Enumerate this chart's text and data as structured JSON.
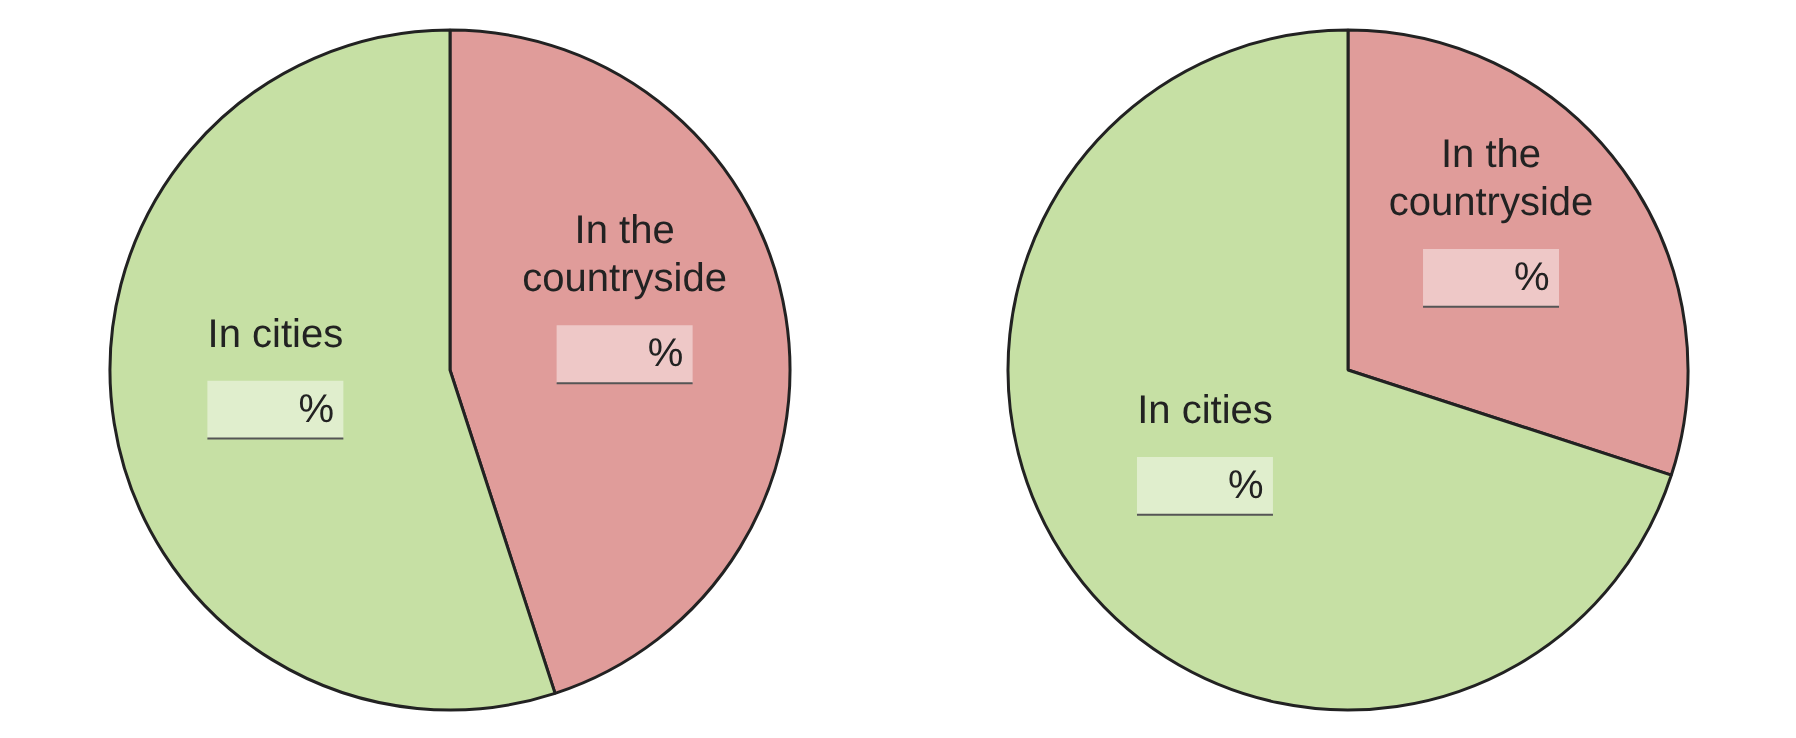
{
  "chart_data": [
    {
      "type": "pie",
      "categories": [
        "In the countryside",
        "In cities"
      ],
      "values": [
        45,
        55
      ],
      "colors": [
        "#e09c9a",
        "#c6e0a4"
      ],
      "value_labels": [
        "%",
        "%"
      ]
    },
    {
      "type": "pie",
      "categories": [
        "In the countryside",
        "In cities"
      ],
      "values": [
        30,
        70
      ],
      "colors": [
        "#e09c9a",
        "#c6e0a4"
      ],
      "value_labels": [
        "%",
        "%"
      ]
    }
  ]
}
